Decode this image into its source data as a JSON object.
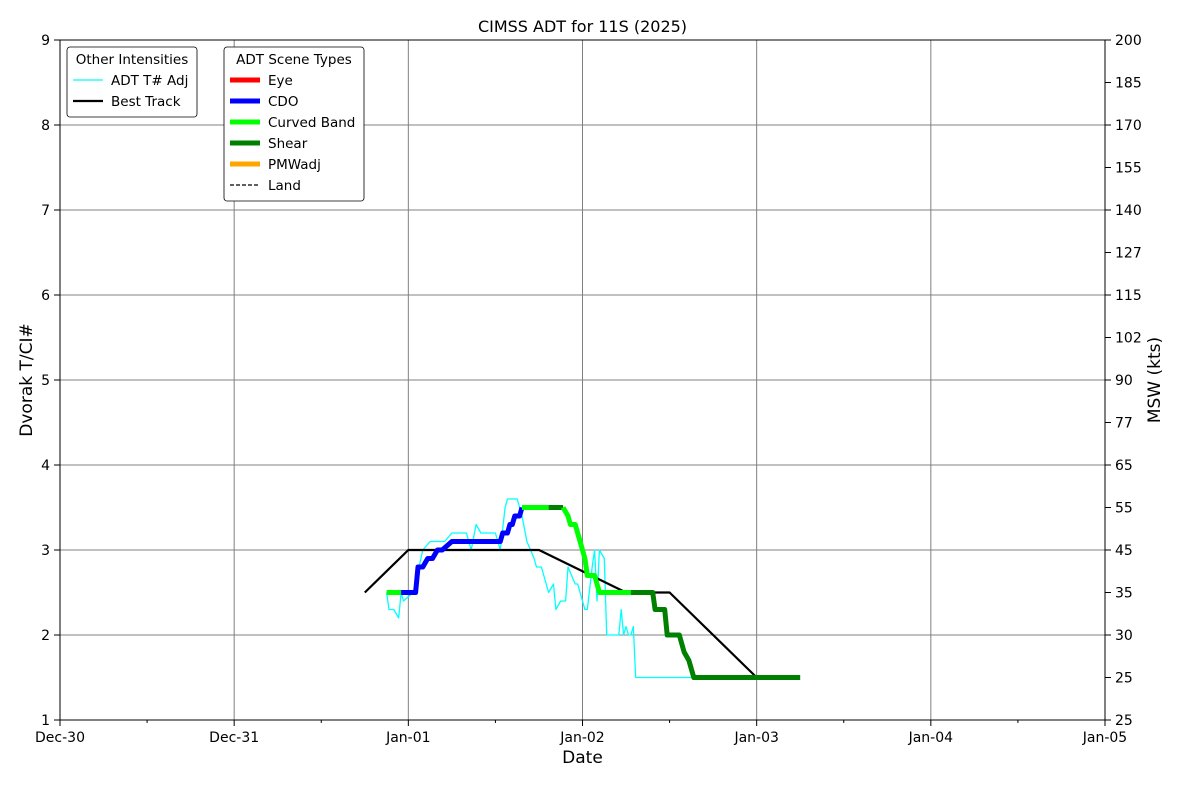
{
  "chart_data": {
    "type": "line",
    "title": "CIMSS ADT for 11S (2025)",
    "xlabel": "Date",
    "ylabel": "Dvorak T/CI#",
    "y2label": "MSW (kts)",
    "x_ticks": [
      "Dec-30",
      "Dec-31",
      "Jan-01",
      "Jan-02",
      "Jan-03",
      "Jan-04",
      "Jan-05"
    ],
    "xlim": [
      "Dec-30 00:00",
      "Jan-05 00:00"
    ],
    "ylim": [
      1,
      9
    ],
    "y_ticks": [
      "1",
      "2",
      "3",
      "4",
      "5",
      "6",
      "7",
      "8",
      "9"
    ],
    "y2_ticks": [
      {
        "t": 1.0,
        "label": "25"
      },
      {
        "t": 1.5,
        "label": "25"
      },
      {
        "t": 2.0,
        "label": "30"
      },
      {
        "t": 2.5,
        "label": "35"
      },
      {
        "t": 3.0,
        "label": "45"
      },
      {
        "t": 3.5,
        "label": "55"
      },
      {
        "t": 4.0,
        "label": "65"
      },
      {
        "t": 4.5,
        "label": "77"
      },
      {
        "t": 5.0,
        "label": "90"
      },
      {
        "t": 5.5,
        "label": "102"
      },
      {
        "t": 6.0,
        "label": "115"
      },
      {
        "t": 6.5,
        "label": "127"
      },
      {
        "t": 7.0,
        "label": "140"
      },
      {
        "t": 7.5,
        "label": "155"
      },
      {
        "t": 8.0,
        "label": "170"
      },
      {
        "t": 8.5,
        "label": "185"
      },
      {
        "t": 9.0,
        "label": "200"
      }
    ],
    "grid": true,
    "legends": [
      {
        "title": "Other Intensities",
        "placement": "top-left",
        "entries": [
          {
            "label": "ADT T# Adj",
            "color": "#00ffff",
            "style": "thin"
          },
          {
            "label": "Best Track",
            "color": "#000000",
            "style": "medium"
          }
        ]
      },
      {
        "title": "ADT Scene Types",
        "placement": "top-left",
        "entries": [
          {
            "label": "Eye",
            "color": "#ff0000",
            "style": "thick"
          },
          {
            "label": "CDO",
            "color": "#0000ff",
            "style": "thick"
          },
          {
            "label": "Curved Band",
            "color": "#00ff00",
            "style": "thick"
          },
          {
            "label": "Shear",
            "color": "#008000",
            "style": "thick"
          },
          {
            "label": "PMWadj",
            "color": "#ffa500",
            "style": "thick"
          },
          {
            "label": "Land",
            "color": "#000000",
            "style": "dashed"
          }
        ]
      }
    ],
    "series": [
      {
        "name": "Best Track",
        "color": "#000000",
        "points": [
          [
            "Dec-31 18:00",
            2.5
          ],
          [
            "Jan-01 00:00",
            3.0
          ],
          [
            "Jan-01 18:00",
            3.0
          ],
          [
            "Jan-02 06:00",
            2.5
          ],
          [
            "Jan-02 12:00",
            2.5
          ],
          [
            "Jan-03 00:00",
            1.5
          ]
        ]
      },
      {
        "name": "ADT T# Adj",
        "color": "#00ffff",
        "points": [
          [
            "Dec-31 21:00",
            2.5
          ],
          [
            "Dec-31 21:20",
            2.3
          ],
          [
            "Dec-31 22:00",
            2.3
          ],
          [
            "Dec-31 22:40",
            2.2
          ],
          [
            "Dec-31 23:00",
            2.5
          ],
          [
            "Dec-31 23:20",
            2.4
          ],
          [
            "Jan-01 00:00",
            2.45
          ],
          [
            "Jan-01 00:40",
            2.5
          ],
          [
            "Jan-01 02:00",
            3.0
          ],
          [
            "Jan-01 03:00",
            3.1
          ],
          [
            "Jan-01 05:00",
            3.1
          ],
          [
            "Jan-01 06:00",
            3.2
          ],
          [
            "Jan-01 08:00",
            3.2
          ],
          [
            "Jan-01 08:40",
            3.0
          ],
          [
            "Jan-01 09:20",
            3.3
          ],
          [
            "Jan-01 10:00",
            3.2
          ],
          [
            "Jan-01 12:00",
            3.2
          ],
          [
            "Jan-01 12:40",
            3.0
          ],
          [
            "Jan-01 13:20",
            3.5
          ],
          [
            "Jan-01 13:40",
            3.6
          ],
          [
            "Jan-01 15:00",
            3.6
          ],
          [
            "Jan-01 15:40",
            3.4
          ],
          [
            "Jan-01 16:20",
            3.1
          ],
          [
            "Jan-01 17:20",
            2.9
          ],
          [
            "Jan-01 17:40",
            2.8
          ],
          [
            "Jan-01 18:20",
            2.8
          ],
          [
            "Jan-01 19:00",
            2.6
          ],
          [
            "Jan-01 19:20",
            2.5
          ],
          [
            "Jan-01 20:00",
            2.6
          ],
          [
            "Jan-01 20:20",
            2.3
          ],
          [
            "Jan-01 21:00",
            2.4
          ],
          [
            "Jan-01 21:40",
            2.4
          ],
          [
            "Jan-01 22:00",
            2.8
          ],
          [
            "Jan-01 23:00",
            2.6
          ],
          [
            "Jan-01 23:20",
            2.6
          ],
          [
            "Jan-02 00:00",
            2.4
          ],
          [
            "Jan-02 00:20",
            2.3
          ],
          [
            "Jan-02 00:40",
            2.3
          ],
          [
            "Jan-02 01:20",
            2.8
          ],
          [
            "Jan-02 01:40",
            3.0
          ],
          [
            "Jan-02 02:00",
            2.4
          ],
          [
            "Jan-02 02:20",
            3.0
          ],
          [
            "Jan-02 03:00",
            2.9
          ],
          [
            "Jan-02 03:20",
            2.0
          ],
          [
            "Jan-02 05:00",
            2.0
          ],
          [
            "Jan-02 05:20",
            2.3
          ],
          [
            "Jan-02 05:40",
            2.0
          ],
          [
            "Jan-02 06:00",
            2.1
          ],
          [
            "Jan-02 06:20",
            2.0
          ],
          [
            "Jan-02 06:40",
            2.0
          ],
          [
            "Jan-02 07:00",
            2.1
          ],
          [
            "Jan-02 07:20",
            1.5
          ],
          [
            "Jan-02 10:00",
            1.5
          ],
          [
            "Jan-02 16:00",
            1.5
          ]
        ]
      },
      {
        "name": "Scene type track",
        "segments": [
          {
            "scene": "Curved Band",
            "color": "#00ff00",
            "points": [
              [
                "Dec-31 21:00",
                2.5
              ],
              [
                "Dec-31 23:00",
                2.5
              ]
            ]
          },
          {
            "scene": "CDO",
            "color": "#0000ff",
            "points": [
              [
                "Dec-31 23:00",
                2.5
              ],
              [
                "Jan-01 01:00",
                2.5
              ],
              [
                "Jan-01 01:20",
                2.8
              ],
              [
                "Jan-01 02:00",
                2.8
              ],
              [
                "Jan-01 02:40",
                2.9
              ],
              [
                "Jan-01 03:20",
                2.9
              ],
              [
                "Jan-01 04:00",
                3.0
              ],
              [
                "Jan-01 04:40",
                3.0
              ],
              [
                "Jan-01 06:00",
                3.1
              ],
              [
                "Jan-01 12:40",
                3.1
              ],
              [
                "Jan-01 13:00",
                3.2
              ],
              [
                "Jan-01 13:40",
                3.2
              ],
              [
                "Jan-01 14:00",
                3.3
              ],
              [
                "Jan-01 14:20",
                3.3
              ],
              [
                "Jan-01 14:40",
                3.4
              ],
              [
                "Jan-01 15:20",
                3.4
              ],
              [
                "Jan-01 15:40",
                3.5
              ]
            ]
          },
          {
            "scene": "Curved Band",
            "color": "#00ff00",
            "points": [
              [
                "Jan-01 15:40",
                3.5
              ],
              [
                "Jan-01 19:20",
                3.5
              ]
            ]
          },
          {
            "scene": "Shear",
            "color": "#008000",
            "points": [
              [
                "Jan-01 19:20",
                3.5
              ],
              [
                "Jan-01 21:20",
                3.5
              ]
            ]
          },
          {
            "scene": "Curved Band",
            "color": "#00ff00",
            "points": [
              [
                "Jan-01 21:20",
                3.5
              ],
              [
                "Jan-01 22:00",
                3.4
              ],
              [
                "Jan-01 22:20",
                3.3
              ],
              [
                "Jan-01 23:00",
                3.3
              ],
              [
                "Jan-01 23:40",
                3.1
              ],
              [
                "Jan-02 00:20",
                2.9
              ],
              [
                "Jan-02 00:40",
                2.7
              ],
              [
                "Jan-02 01:40",
                2.7
              ],
              [
                "Jan-02 02:00",
                2.6
              ],
              [
                "Jan-02 02:20",
                2.5
              ],
              [
                "Jan-02 06:40",
                2.5
              ]
            ]
          },
          {
            "scene": "Shear",
            "color": "#008000",
            "points": [
              [
                "Jan-02 06:40",
                2.5
              ],
              [
                "Jan-02 09:40",
                2.5
              ],
              [
                "Jan-02 10:00",
                2.3
              ],
              [
                "Jan-02 11:20",
                2.3
              ],
              [
                "Jan-02 11:40",
                2.0
              ],
              [
                "Jan-02 13:20",
                2.0
              ],
              [
                "Jan-02 14:00",
                1.8
              ],
              [
                "Jan-02 14:40",
                1.7
              ],
              [
                "Jan-02 15:20",
                1.5
              ],
              [
                "Jan-03 06:00",
                1.5
              ]
            ]
          }
        ]
      }
    ]
  }
}
